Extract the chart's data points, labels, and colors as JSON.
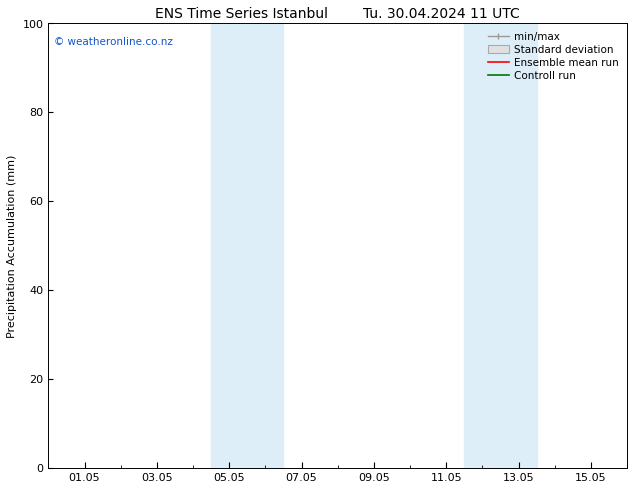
{
  "title": "ENS Time Series Istanbul",
  "title2": "Tu. 30.04.2024 11 UTC",
  "ylabel": "Precipitation Accumulation (mm)",
  "ylim": [
    0,
    100
  ],
  "yticks": [
    0,
    20,
    40,
    60,
    80,
    100
  ],
  "xtick_labels": [
    "01.05",
    "03.05",
    "05.05",
    "07.05",
    "09.05",
    "11.05",
    "13.05",
    "15.05"
  ],
  "xtick_positions": [
    0,
    2,
    4,
    6,
    8,
    10,
    12,
    14
  ],
  "shade_regions": [
    {
      "xmin": 3.5,
      "xmax": 4.5,
      "color": "#ddeef8"
    },
    {
      "xmin": 4.5,
      "xmax": 5.5,
      "color": "#ddeef8"
    },
    {
      "xmin": 10.5,
      "xmax": 11.5,
      "color": "#ddeef8"
    },
    {
      "xmin": 11.5,
      "xmax": 12.5,
      "color": "#ddeef8"
    }
  ],
  "watermark": "© weatheronline.co.nz",
  "watermark_color": "#1155cc",
  "background_color": "#ffffff",
  "plot_bg_color": "#ffffff",
  "legend_labels": [
    "min/max",
    "Standard deviation",
    "Ensemble mean run",
    "Controll run"
  ],
  "legend_colors": [
    "#888888",
    "#cccccc",
    "#ff0000",
    "#00aa00"
  ],
  "xmin": -0.5,
  "xmax": 14.5,
  "figsize": [
    6.34,
    4.9
  ],
  "dpi": 100,
  "title_fontsize": 10,
  "ylabel_fontsize": 8,
  "tick_fontsize": 8,
  "legend_fontsize": 7.5
}
